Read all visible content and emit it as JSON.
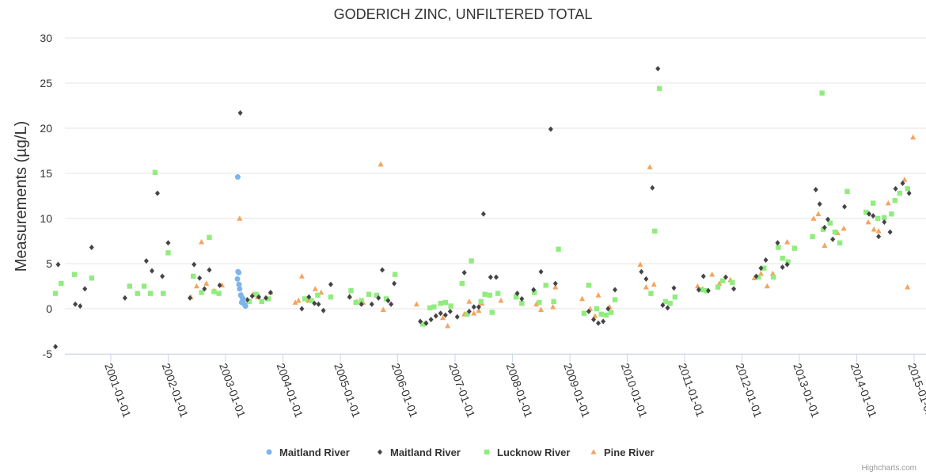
{
  "chart_data": {
    "type": "scatter",
    "title": "GODERICH ZINC, UNFILTERED TOTAL",
    "ylabel": "Measurements (µg/L)",
    "xlabel": "",
    "xlim": [
      "2000-01-01",
      "2015-01-01"
    ],
    "ylim": [
      -5,
      30
    ],
    "yticks": [
      -5,
      0,
      5,
      10,
      15,
      20,
      25,
      30
    ],
    "xticks": [
      "2001-01-01",
      "2002-01-01",
      "2003-01-01",
      "2004-01-01",
      "2005-01-01",
      "2006-01-01",
      "2007-01-01",
      "2008-01-01",
      "2009-01-01",
      "2010-01-01",
      "2011-01-01",
      "2012-01-01",
      "2013-01-01",
      "2014-01-01",
      "2015-01-01"
    ],
    "grid": true,
    "legend_position": "bottom",
    "series": [
      {
        "name": "Maitland River",
        "marker": "circle",
        "color": "#7cb5ec",
        "points": [
          [
            "2003-03-20",
            14.6
          ],
          [
            "2003-03-22",
            4.1
          ],
          [
            "2003-03-26",
            4.0
          ],
          [
            "2003-03-18",
            3.3
          ],
          [
            "2003-03-28",
            2.7
          ],
          [
            "2003-04-01",
            2.2
          ],
          [
            "2003-04-08",
            1.5
          ],
          [
            "2003-04-18",
            1.2
          ],
          [
            "2003-04-25",
            1.0
          ],
          [
            "2003-04-14",
            0.7
          ],
          [
            "2003-05-01",
            0.5
          ],
          [
            "2003-05-08",
            0.3
          ]
        ]
      },
      {
        "name": "Maitland River",
        "marker": "diamond",
        "color": "#434348",
        "points": [
          [
            "2000-01-15",
            -4.2
          ],
          [
            "2000-02-01",
            4.9
          ],
          [
            "2000-05-20",
            0.5
          ],
          [
            "2000-06-20",
            0.3
          ],
          [
            "2000-07-20",
            2.2
          ],
          [
            "2000-09-01",
            6.8
          ],
          [
            "2001-04-01",
            1.2
          ],
          [
            "2001-08-15",
            5.3
          ],
          [
            "2001-09-20",
            4.2
          ],
          [
            "2001-10-25",
            12.8
          ],
          [
            "2001-11-25",
            3.6
          ],
          [
            "2002-01-01",
            7.3
          ],
          [
            "2002-05-20",
            1.2
          ],
          [
            "2002-06-15",
            4.9
          ],
          [
            "2002-07-20",
            3.4
          ],
          [
            "2002-08-20",
            2.2
          ],
          [
            "2002-09-20",
            4.3
          ],
          [
            "2002-11-25",
            2.6
          ],
          [
            "2003-04-05",
            21.7
          ],
          [
            "2003-05-20",
            1.0
          ],
          [
            "2003-06-20",
            1.4
          ],
          [
            "2003-08-01",
            1.3
          ],
          [
            "2003-09-15",
            1.2
          ],
          [
            "2003-10-15",
            1.8
          ],
          [
            "2004-05-01",
            0.0
          ],
          [
            "2004-06-15",
            1.3
          ],
          [
            "2004-07-20",
            0.6
          ],
          [
            "2004-08-15",
            0.5
          ],
          [
            "2004-09-15",
            -0.2
          ],
          [
            "2004-11-01",
            2.7
          ],
          [
            "2005-03-01",
            1.3
          ],
          [
            "2005-05-15",
            0.5
          ],
          [
            "2005-07-20",
            0.5
          ],
          [
            "2005-09-01",
            1.2
          ],
          [
            "2005-09-25",
            4.3
          ],
          [
            "2005-11-01",
            0.9
          ],
          [
            "2005-11-20",
            0.5
          ],
          [
            "2005-12-10",
            2.8
          ],
          [
            "2006-05-25",
            -1.4
          ],
          [
            "2006-07-01",
            -1.6
          ],
          [
            "2006-08-01",
            -1.2
          ],
          [
            "2006-09-01",
            -0.8
          ],
          [
            "2006-10-01",
            -0.5
          ],
          [
            "2006-11-01",
            -0.7
          ],
          [
            "2006-12-01",
            -0.3
          ],
          [
            "2007-01-15",
            -0.9
          ],
          [
            "2007-03-01",
            4.0
          ],
          [
            "2007-04-01",
            -0.3
          ],
          [
            "2007-05-01",
            0.2
          ],
          [
            "2007-06-01",
            0.2
          ],
          [
            "2007-07-01",
            10.5
          ],
          [
            "2007-08-15",
            3.5
          ],
          [
            "2007-09-20",
            3.5
          ],
          [
            "2008-02-01",
            1.7
          ],
          [
            "2008-03-01",
            1.1
          ],
          [
            "2008-05-15",
            2.1
          ],
          [
            "2008-07-01",
            4.1
          ],
          [
            "2008-09-01",
            19.9
          ],
          [
            "2008-10-01",
            2.8
          ],
          [
            "2009-05-01",
            -0.3
          ],
          [
            "2009-06-01",
            -1.2
          ],
          [
            "2009-07-01",
            -1.6
          ],
          [
            "2009-08-01",
            -1.4
          ],
          [
            "2009-09-01",
            0.0
          ],
          [
            "2009-10-15",
            2.1
          ],
          [
            "2010-04-01",
            4.1
          ],
          [
            "2010-05-01",
            3.3
          ],
          [
            "2010-06-10",
            13.4
          ],
          [
            "2010-07-15",
            26.6
          ],
          [
            "2010-08-15",
            0.4
          ],
          [
            "2010-09-15",
            0.1
          ],
          [
            "2010-10-25",
            2.3
          ],
          [
            "2011-04-01",
            2.1
          ],
          [
            "2011-05-01",
            3.6
          ],
          [
            "2011-06-01",
            2.0
          ],
          [
            "2011-09-20",
            3.5
          ],
          [
            "2011-11-10",
            2.2
          ],
          [
            "2012-04-01",
            3.6
          ],
          [
            "2012-05-01",
            4.5
          ],
          [
            "2012-06-01",
            5.4
          ],
          [
            "2012-08-15",
            7.3
          ],
          [
            "2012-09-15",
            4.6
          ],
          [
            "2012-10-15",
            4.9
          ],
          [
            "2013-04-15",
            13.2
          ],
          [
            "2013-05-10",
            11.6
          ],
          [
            "2013-06-10",
            9.0
          ],
          [
            "2013-07-01",
            9.9
          ],
          [
            "2013-08-01",
            7.7
          ],
          [
            "2013-10-15",
            11.3
          ],
          [
            "2014-03-20",
            10.5
          ],
          [
            "2014-04-15",
            10.3
          ],
          [
            "2014-05-20",
            8.0
          ],
          [
            "2014-06-25",
            9.6
          ],
          [
            "2014-08-01",
            8.5
          ],
          [
            "2014-09-05",
            13.3
          ],
          [
            "2014-10-20",
            13.9
          ],
          [
            "2014-11-30",
            12.8
          ]
        ]
      },
      {
        "name": "Lucknow River",
        "marker": "square",
        "color": "#90ed7d",
        "points": [
          [
            "2000-01-15",
            1.7
          ],
          [
            "2000-02-20",
            2.8
          ],
          [
            "2000-05-15",
            3.8
          ],
          [
            "2000-09-01",
            3.4
          ],
          [
            "2001-05-01",
            2.5
          ],
          [
            "2001-06-20",
            1.7
          ],
          [
            "2001-08-01",
            2.5
          ],
          [
            "2001-09-10",
            1.7
          ],
          [
            "2001-10-10",
            15.1
          ],
          [
            "2001-12-01",
            1.7
          ],
          [
            "2002-01-01",
            6.2
          ],
          [
            "2002-06-10",
            3.6
          ],
          [
            "2002-08-01",
            1.8
          ],
          [
            "2002-09-20",
            7.9
          ],
          [
            "2002-10-20",
            1.9
          ],
          [
            "2002-11-20",
            1.7
          ],
          [
            "2003-06-01",
            0.8
          ],
          [
            "2003-07-15",
            1.6
          ],
          [
            "2003-08-20",
            0.8
          ],
          [
            "2003-10-01",
            1.1
          ],
          [
            "2004-05-20",
            1.1
          ],
          [
            "2004-07-01",
            0.9
          ],
          [
            "2004-08-10",
            1.5
          ],
          [
            "2004-11-01",
            1.3
          ],
          [
            "2005-03-10",
            2.0
          ],
          [
            "2005-04-10",
            0.7
          ],
          [
            "2005-05-15",
            0.9
          ],
          [
            "2005-07-01",
            1.6
          ],
          [
            "2005-08-20",
            1.5
          ],
          [
            "2005-10-20",
            1.1
          ],
          [
            "2005-12-15",
            3.8
          ],
          [
            "2006-06-10",
            -1.7
          ],
          [
            "2006-07-25",
            0.1
          ],
          [
            "2006-08-20",
            0.2
          ],
          [
            "2006-10-01",
            0.6
          ],
          [
            "2006-11-01",
            0.7
          ],
          [
            "2006-12-05",
            0.3
          ],
          [
            "2007-02-15",
            2.8
          ],
          [
            "2007-03-20",
            -0.6
          ],
          [
            "2007-04-15",
            5.3
          ],
          [
            "2007-06-15",
            0.8
          ],
          [
            "2007-07-10",
            1.6
          ],
          [
            "2007-08-10",
            1.5
          ],
          [
            "2007-08-25",
            -0.4
          ],
          [
            "2007-10-01",
            1.7
          ],
          [
            "2008-01-25",
            1.3
          ],
          [
            "2008-03-01",
            0.6
          ],
          [
            "2008-05-20",
            1.8
          ],
          [
            "2008-06-20",
            0.7
          ],
          [
            "2008-08-01",
            2.6
          ],
          [
            "2008-09-20",
            0.8
          ],
          [
            "2008-10-20",
            6.6
          ],
          [
            "2009-04-01",
            -0.5
          ],
          [
            "2009-05-01",
            2.6
          ],
          [
            "2009-06-20",
            0.0
          ],
          [
            "2009-07-20",
            -0.6
          ],
          [
            "2009-08-20",
            -0.7
          ],
          [
            "2009-09-20",
            -0.4
          ],
          [
            "2009-10-15",
            1.0
          ],
          [
            "2010-06-01",
            1.7
          ],
          [
            "2010-06-25",
            8.6
          ],
          [
            "2010-07-25",
            24.4
          ],
          [
            "2010-09-01",
            0.8
          ],
          [
            "2010-10-01",
            0.6
          ],
          [
            "2010-11-01",
            1.3
          ],
          [
            "2011-04-20",
            2.1
          ],
          [
            "2011-05-20",
            2.0
          ],
          [
            "2011-08-01",
            2.4
          ],
          [
            "2011-09-01",
            3.1
          ],
          [
            "2011-11-01",
            2.9
          ],
          [
            "2012-04-15",
            3.5
          ],
          [
            "2012-05-20",
            4.5
          ],
          [
            "2012-07-20",
            3.5
          ],
          [
            "2012-08-20",
            6.8
          ],
          [
            "2012-09-15",
            5.6
          ],
          [
            "2012-10-20",
            5.2
          ],
          [
            "2012-12-01",
            6.7
          ],
          [
            "2013-03-25",
            8.0
          ],
          [
            "2013-05-25",
            23.9
          ],
          [
            "2013-06-01",
            8.8
          ],
          [
            "2013-07-15",
            9.5
          ],
          [
            "2013-08-15",
            8.5
          ],
          [
            "2013-09-15",
            7.3
          ],
          [
            "2013-11-01",
            13.0
          ],
          [
            "2014-03-01",
            10.7
          ],
          [
            "2014-04-15",
            11.7
          ],
          [
            "2014-05-15",
            10.0
          ],
          [
            "2014-06-25",
            10.1
          ],
          [
            "2014-08-10",
            10.5
          ],
          [
            "2014-09-01",
            12.0
          ],
          [
            "2014-10-01",
            12.8
          ],
          [
            "2014-11-20",
            13.3
          ]
        ]
      },
      {
        "name": "Pine River",
        "marker": "triangle",
        "color": "#f7a35c",
        "points": [
          [
            "2002-05-25",
            1.3
          ],
          [
            "2002-07-01",
            2.5
          ],
          [
            "2002-08-01",
            7.4
          ],
          [
            "2002-09-01",
            2.8
          ],
          [
            "2002-10-20",
            2.0
          ],
          [
            "2002-12-10",
            2.6
          ],
          [
            "2003-04-01",
            10.0
          ],
          [
            "2003-04-15",
            1.6
          ],
          [
            "2003-06-25",
            1.6
          ],
          [
            "2003-07-25",
            1.3
          ],
          [
            "2003-10-15",
            1.8
          ],
          [
            "2004-03-20",
            0.7
          ],
          [
            "2004-04-10",
            0.9
          ],
          [
            "2004-05-01",
            3.6
          ],
          [
            "2004-06-10",
            0.9
          ],
          [
            "2004-07-25",
            2.2
          ],
          [
            "2004-09-01",
            1.8
          ],
          [
            "2005-03-01",
            1.4
          ],
          [
            "2005-04-15",
            0.8
          ],
          [
            "2005-05-25",
            0.7
          ],
          [
            "2005-09-15",
            16.0
          ],
          [
            "2005-10-01",
            -0.1
          ],
          [
            "2006-05-01",
            0.5
          ],
          [
            "2006-06-25",
            -1.6
          ],
          [
            "2006-10-15",
            -1.0
          ],
          [
            "2006-11-15",
            -1.9
          ],
          [
            "2007-03-01",
            -0.6
          ],
          [
            "2007-04-01",
            0.8
          ],
          [
            "2007-05-01",
            -0.5
          ],
          [
            "2007-06-01",
            -0.2
          ],
          [
            "2007-06-20",
            0.6
          ],
          [
            "2007-10-20",
            0.9
          ],
          [
            "2008-01-25",
            1.6
          ],
          [
            "2008-03-01",
            0.7
          ],
          [
            "2008-06-01",
            0.5
          ],
          [
            "2008-07-01",
            -0.1
          ],
          [
            "2008-09-15",
            0.2
          ],
          [
            "2008-10-01",
            2.4
          ],
          [
            "2009-03-20",
            1.1
          ],
          [
            "2009-05-10",
            0.0
          ],
          [
            "2009-06-10",
            -0.8
          ],
          [
            "2009-07-01",
            1.5
          ],
          [
            "2009-09-10",
            0.2
          ],
          [
            "2010-03-25",
            4.9
          ],
          [
            "2010-05-01",
            2.4
          ],
          [
            "2010-05-25",
            15.7
          ],
          [
            "2010-06-20",
            2.7
          ],
          [
            "2011-03-25",
            2.5
          ],
          [
            "2011-04-25",
            2.2
          ],
          [
            "2011-06-25",
            3.8
          ],
          [
            "2011-08-10",
            2.8
          ],
          [
            "2011-10-20",
            3.2
          ],
          [
            "2012-03-20",
            3.4
          ],
          [
            "2012-05-01",
            3.9
          ],
          [
            "2012-06-10",
            2.5
          ],
          [
            "2012-07-15",
            3.9
          ],
          [
            "2012-10-15",
            7.4
          ],
          [
            "2013-04-01",
            10.0
          ],
          [
            "2013-05-01",
            10.5
          ],
          [
            "2013-06-10",
            7.0
          ],
          [
            "2013-09-01",
            8.4
          ],
          [
            "2013-10-10",
            8.9
          ],
          [
            "2014-03-15",
            9.6
          ],
          [
            "2014-04-20",
            8.8
          ],
          [
            "2014-05-20",
            8.6
          ],
          [
            "2014-07-20",
            11.7
          ],
          [
            "2014-11-01",
            14.3
          ],
          [
            "2014-11-20",
            2.4
          ],
          [
            "2014-12-25",
            19.0
          ]
        ]
      }
    ]
  },
  "credits": "Highcharts.com"
}
